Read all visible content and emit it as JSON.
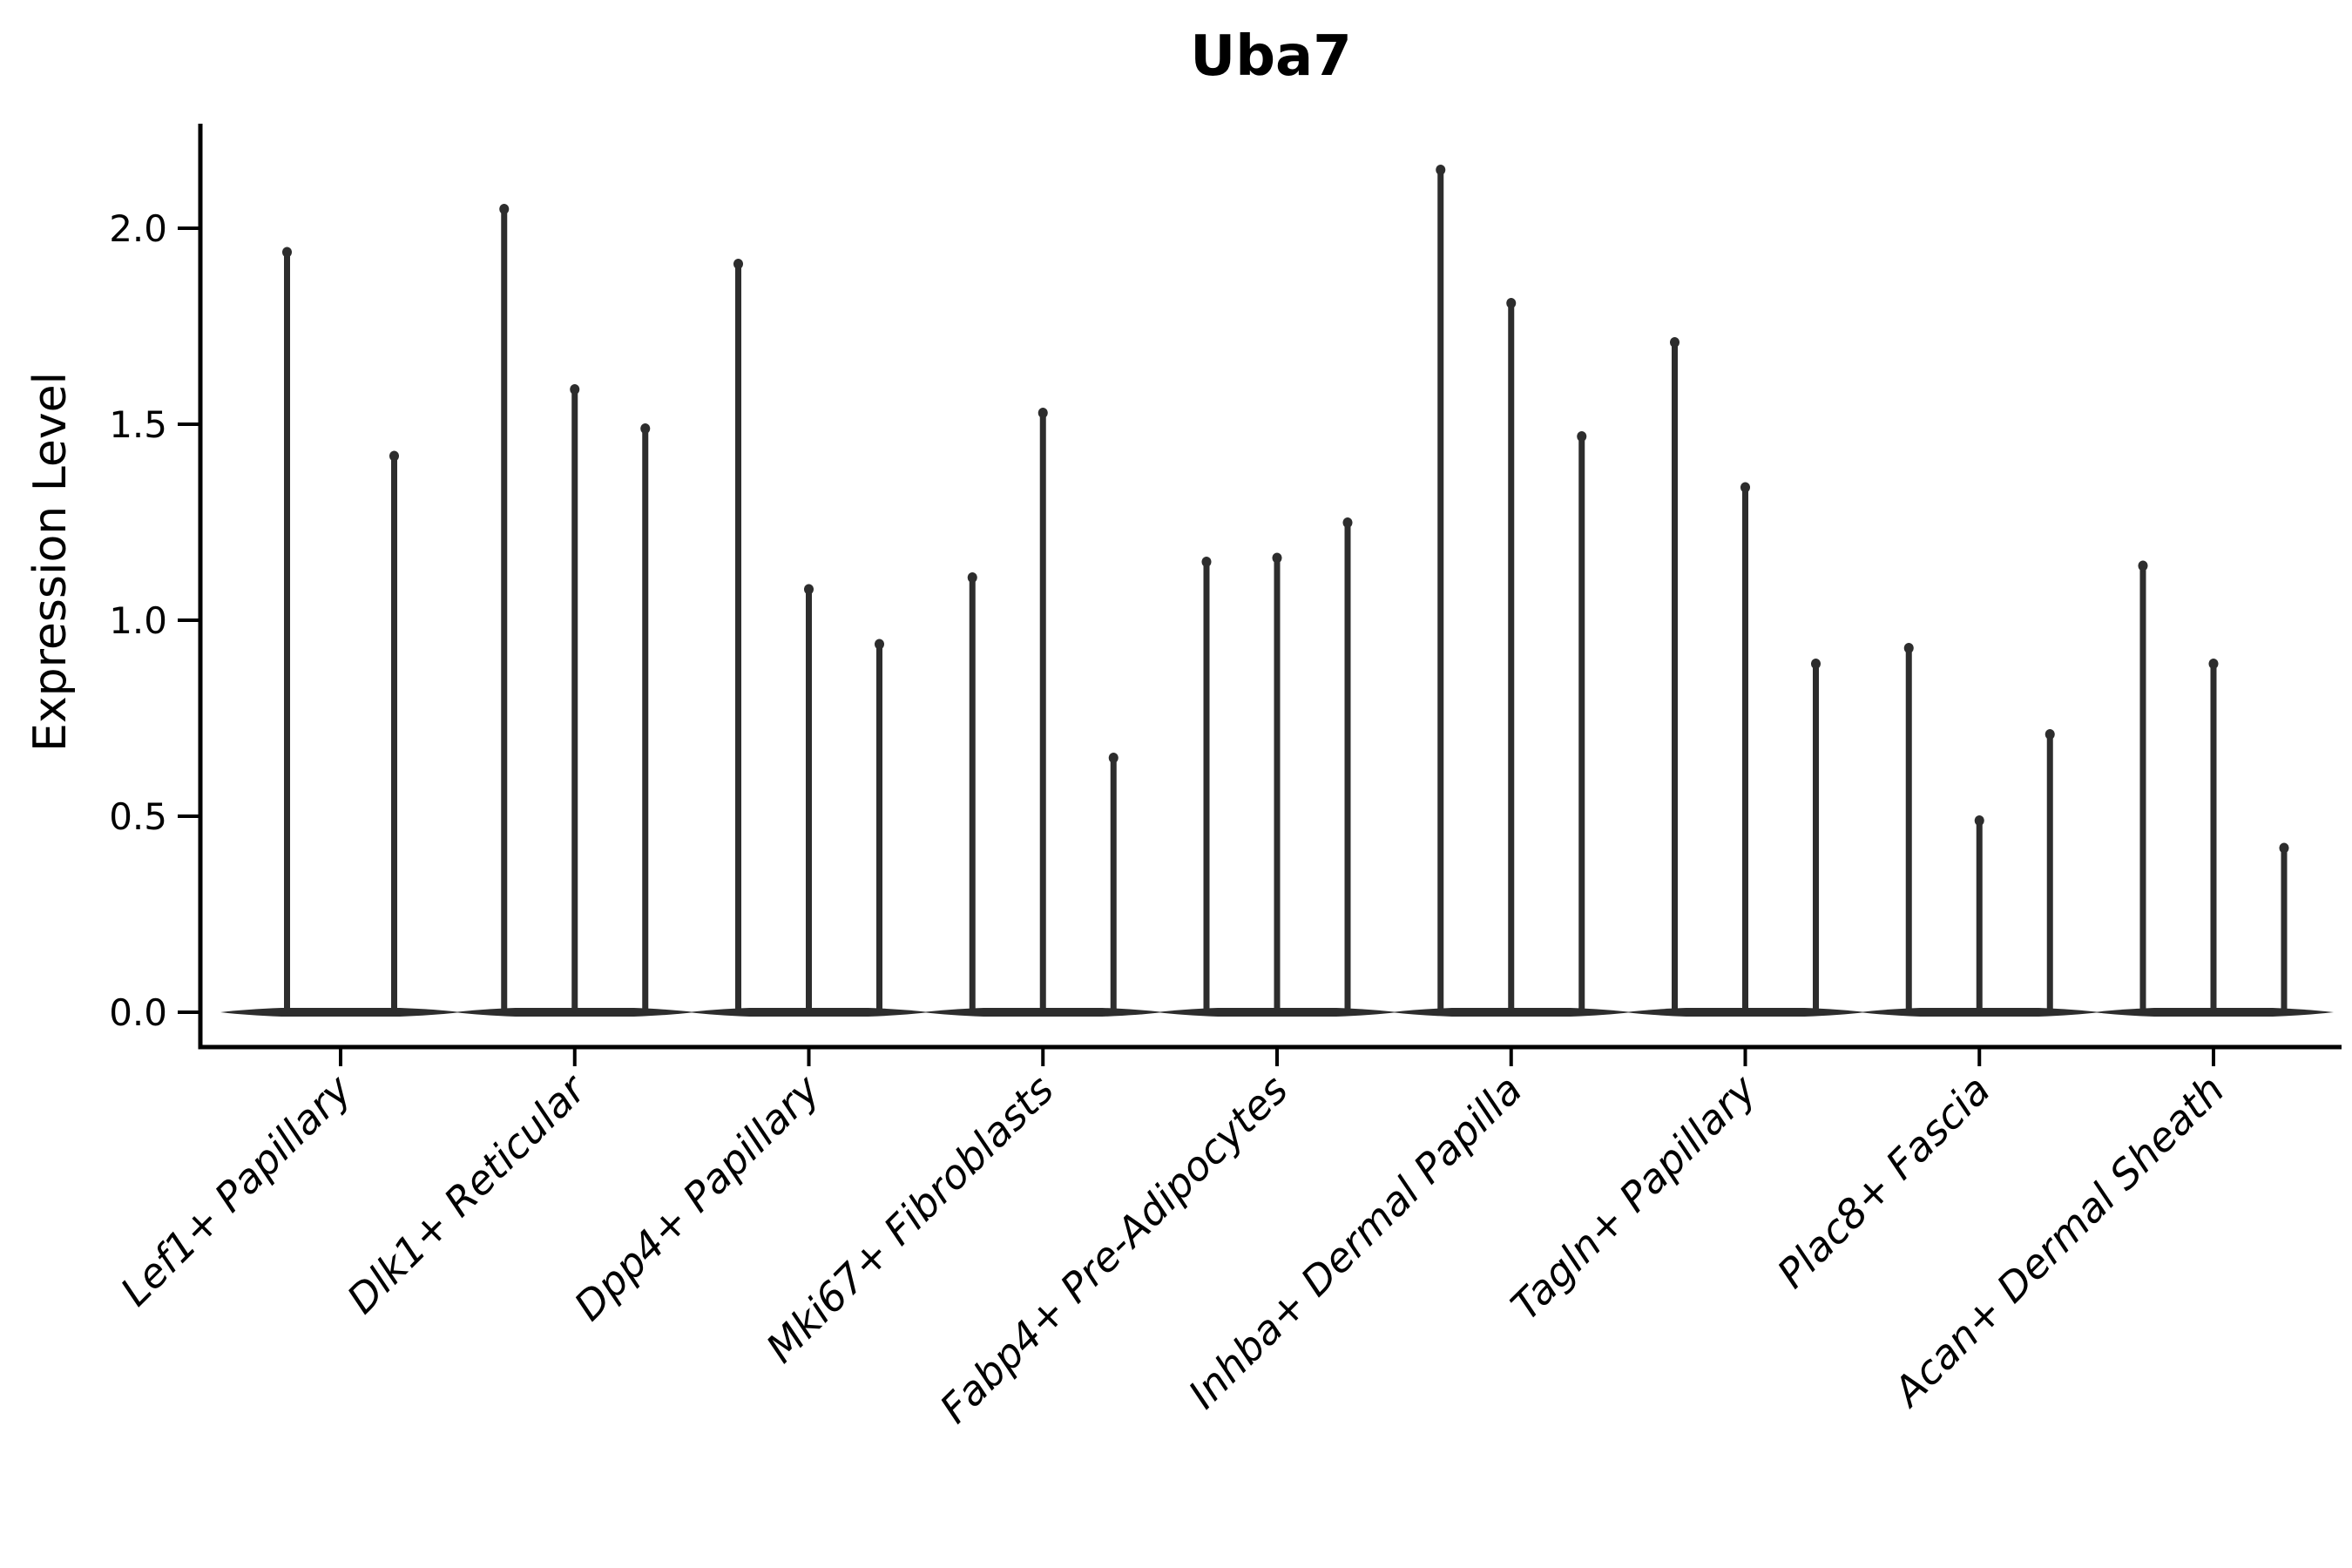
{
  "figure": {
    "title": "Uba7",
    "ylabel": "Expression Level"
  },
  "chart_data": {
    "type": "violin",
    "title": "Uba7",
    "xlabel": "",
    "ylabel": "Expression Level",
    "ylim": [
      -0.09,
      2.27
    ],
    "yticks": [
      "0.0",
      "0.5",
      "1.0",
      "1.5",
      "2.0"
    ],
    "grid": false,
    "legend": "none",
    "violin_color": "#2d2d2d",
    "axis_color": "#000000",
    "x_tick_style": "italic, rotated 45deg",
    "categories": [
      "Lef1+ Papillary",
      "Dlk1+ Reticular",
      "Dpp4+ Papillary",
      "Mki67+ Fibroblasts",
      "Fabp4+ Pre-Adipocytes",
      "Inhba+ Dermal Papilla",
      "Tagln+ Papillary",
      "Plac8+ Fascia",
      "Acan+ Dermal Sheath"
    ],
    "groups": [
      {
        "label": "Lef1+ Papillary",
        "violin_min": 0,
        "violin_maxima": [
          1.95,
          1.43
        ]
      },
      {
        "label": "Dlk1+ Reticular",
        "violin_min": 0,
        "violin_maxima": [
          2.06,
          1.6,
          1.5
        ]
      },
      {
        "label": "Dpp4+ Papillary",
        "violin_min": 0,
        "violin_maxima": [
          1.92,
          1.09,
          0.95
        ]
      },
      {
        "label": "Mki67+ Fibroblasts",
        "violin_min": 0,
        "violin_maxima": [
          1.12,
          1.54,
          0.66
        ]
      },
      {
        "label": "Fabp4+ Pre-Adipocytes",
        "violin_min": 0,
        "violin_maxima": [
          1.16,
          1.17,
          1.26
        ]
      },
      {
        "label": "Inhba+ Dermal Papilla",
        "violin_min": 0,
        "violin_maxima": [
          2.16,
          1.82,
          1.48
        ]
      },
      {
        "label": "Tagln+ Papillary",
        "violin_min": 0,
        "violin_maxima": [
          1.72,
          1.35,
          0.9
        ]
      },
      {
        "label": "Plac8+ Fascia",
        "violin_min": 0,
        "violin_maxima": [
          0.94,
          0.5,
          0.72
        ]
      },
      {
        "label": "Acan+ Dermal Sheath",
        "violin_min": 0,
        "violin_maxima": [
          1.15,
          0.9,
          0.43
        ]
      }
    ]
  }
}
